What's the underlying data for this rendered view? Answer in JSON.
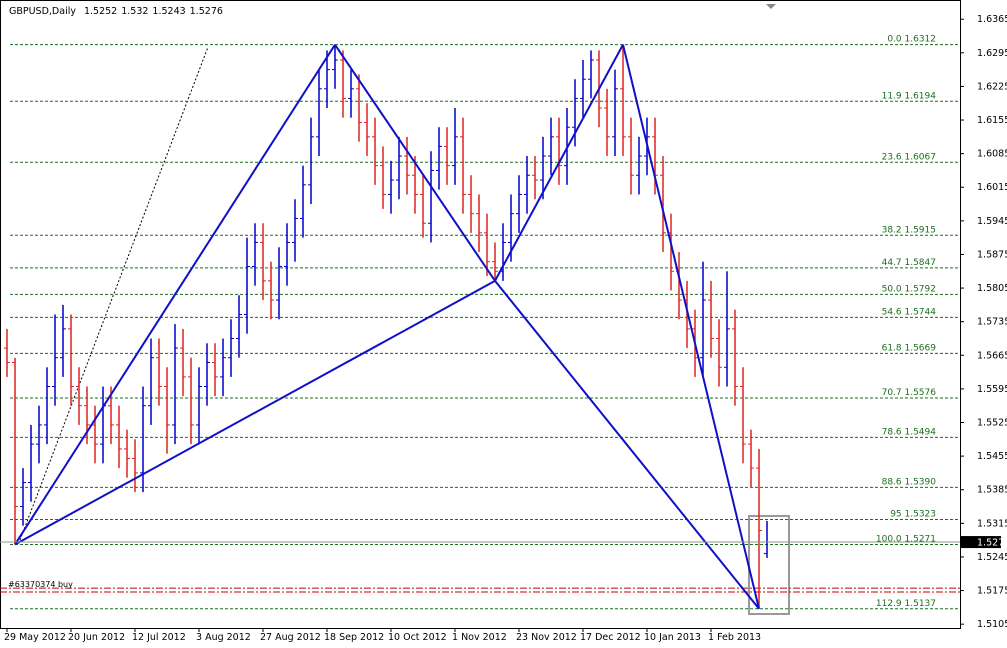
{
  "chart_data": {
    "type": "ohlc",
    "title": "GBPUSD,Daily",
    "header_values": [
      1.5252,
      1.532,
      1.5243,
      1.5276
    ],
    "ylim": [
      1.5097,
      1.6405
    ],
    "yticks": [
      1.6365,
      1.6295,
      1.6225,
      1.6155,
      1.6085,
      1.6015,
      1.5945,
      1.5875,
      1.5805,
      1.5735,
      1.5665,
      1.5595,
      1.5525,
      1.5455,
      1.5385,
      1.5315,
      1.5245,
      1.5175,
      1.5105
    ],
    "date_labels": [
      "29 May 2012",
      "20 Jun 2012",
      "12 Jul 2012",
      "3 Aug 2012",
      "27 Aug 2012",
      "18 Sep 2012",
      "10 Oct 2012",
      "1 Nov 2012",
      "23 Nov 2012",
      "17 Dec 2012",
      "10 Jan 2013",
      "1 Feb 2013"
    ],
    "up_color": "#0000cc",
    "down_color": "#dd2222",
    "pattern_color": "#1010c8",
    "bars": [
      [
        1.568,
        1.572,
        1.562,
        1.565
      ],
      [
        1.565,
        1.566,
        1.5271,
        1.535
      ],
      [
        1.535,
        1.543,
        1.531,
        1.54
      ],
      [
        1.54,
        1.552,
        1.536,
        1.548
      ],
      [
        1.548,
        1.556,
        1.544,
        1.552
      ],
      [
        1.552,
        1.564,
        1.548,
        1.56
      ],
      [
        1.56,
        1.575,
        1.556,
        1.566
      ],
      [
        1.566,
        1.577,
        1.562,
        1.572
      ],
      [
        1.572,
        1.575,
        1.556,
        1.56
      ],
      [
        1.56,
        1.564,
        1.552,
        1.556
      ],
      [
        1.556,
        1.56,
        1.548,
        1.552
      ],
      [
        1.552,
        1.556,
        1.544,
        1.548
      ],
      [
        1.548,
        1.56,
        1.544,
        1.556
      ],
      [
        1.556,
        1.56,
        1.548,
        1.552
      ],
      [
        1.552,
        1.556,
        1.543,
        1.547
      ],
      [
        1.547,
        1.551,
        1.541,
        1.545
      ],
      [
        1.545,
        1.549,
        1.538,
        1.542
      ],
      [
        1.542,
        1.56,
        1.538,
        1.556
      ],
      [
        1.556,
        1.57,
        1.552,
        1.566
      ],
      [
        1.566,
        1.57,
        1.556,
        1.56
      ],
      [
        1.56,
        1.564,
        1.546,
        1.552
      ],
      [
        1.552,
        1.573,
        1.548,
        1.568
      ],
      [
        1.568,
        1.572,
        1.558,
        1.562
      ],
      [
        1.562,
        1.566,
        1.548,
        1.552
      ],
      [
        1.552,
        1.564,
        1.548,
        1.56
      ],
      [
        1.56,
        1.569,
        1.556,
        1.565
      ],
      [
        1.565,
        1.569,
        1.558,
        1.562
      ],
      [
        1.562,
        1.57,
        1.558,
        1.566
      ],
      [
        1.566,
        1.574,
        1.562,
        1.57
      ],
      [
        1.57,
        1.579,
        1.566,
        1.575
      ],
      [
        1.575,
        1.591,
        1.571,
        1.585
      ],
      [
        1.585,
        1.594,
        1.581,
        1.59
      ],
      [
        1.59,
        1.594,
        1.578,
        1.582
      ],
      [
        1.582,
        1.586,
        1.574,
        1.578
      ],
      [
        1.578,
        1.589,
        1.574,
        1.585
      ],
      [
        1.585,
        1.594,
        1.581,
        1.59
      ],
      [
        1.59,
        1.599,
        1.586,
        1.595
      ],
      [
        1.595,
        1.606,
        1.591,
        1.602
      ],
      [
        1.602,
        1.616,
        1.598,
        1.612
      ],
      [
        1.612,
        1.626,
        1.608,
        1.622
      ],
      [
        1.622,
        1.63,
        1.618,
        1.626
      ],
      [
        1.626,
        1.6312,
        1.622,
        1.628
      ],
      [
        1.628,
        1.63,
        1.616,
        1.62
      ],
      [
        1.62,
        1.626,
        1.616,
        1.622
      ],
      [
        1.622,
        1.625,
        1.611,
        1.615
      ],
      [
        1.615,
        1.619,
        1.608,
        1.612
      ],
      [
        1.612,
        1.616,
        1.602,
        1.606
      ],
      [
        1.606,
        1.61,
        1.597,
        1.6
      ],
      [
        1.6,
        1.607,
        1.596,
        1.603
      ],
      [
        1.603,
        1.612,
        1.599,
        1.608
      ],
      [
        1.608,
        1.612,
        1.6,
        1.604
      ],
      [
        1.604,
        1.608,
        1.596,
        1.6
      ],
      [
        1.6,
        1.604,
        1.591,
        1.594
      ],
      [
        1.594,
        1.609,
        1.59,
        1.605
      ],
      [
        1.605,
        1.614,
        1.601,
        1.61
      ],
      [
        1.61,
        1.614,
        1.602,
        1.606
      ],
      [
        1.606,
        1.618,
        1.602,
        1.612
      ],
      [
        1.612,
        1.616,
        1.596,
        1.6
      ],
      [
        1.6,
        1.604,
        1.592,
        1.596
      ],
      [
        1.596,
        1.6,
        1.588,
        1.592
      ],
      [
        1.592,
        1.596,
        1.583,
        1.586
      ],
      [
        1.586,
        1.59,
        1.582,
        1.584
      ],
      [
        1.584,
        1.594,
        1.582,
        1.59
      ],
      [
        1.59,
        1.6,
        1.586,
        1.596
      ],
      [
        1.596,
        1.604,
        1.592,
        1.6
      ],
      [
        1.6,
        1.608,
        1.596,
        1.604
      ],
      [
        1.604,
        1.608,
        1.599,
        1.603
      ],
      [
        1.603,
        1.612,
        1.599,
        1.608
      ],
      [
        1.608,
        1.616,
        1.604,
        1.612
      ],
      [
        1.612,
        1.616,
        1.602,
        1.606
      ],
      [
        1.606,
        1.618,
        1.602,
        1.614
      ],
      [
        1.614,
        1.624,
        1.61,
        1.62
      ],
      [
        1.62,
        1.628,
        1.616,
        1.624
      ],
      [
        1.624,
        1.63,
        1.62,
        1.628
      ],
      [
        1.628,
        1.63,
        1.614,
        1.618
      ],
      [
        1.618,
        1.622,
        1.608,
        1.612
      ],
      [
        1.612,
        1.626,
        1.608,
        1.622
      ],
      [
        1.622,
        1.6312,
        1.608,
        1.612
      ],
      [
        1.612,
        1.616,
        1.6,
        1.604
      ],
      [
        1.604,
        1.612,
        1.6,
        1.608
      ],
      [
        1.608,
        1.616,
        1.604,
        1.612
      ],
      [
        1.612,
        1.616,
        1.6,
        1.604
      ],
      [
        1.604,
        1.608,
        1.588,
        1.592
      ],
      [
        1.592,
        1.596,
        1.58,
        1.584
      ],
      [
        1.584,
        1.588,
        1.574,
        1.578
      ],
      [
        1.578,
        1.582,
        1.568,
        1.572
      ],
      [
        1.572,
        1.576,
        1.562,
        1.566
      ],
      [
        1.566,
        1.586,
        1.562,
        1.578
      ],
      [
        1.578,
        1.582,
        1.566,
        1.57
      ],
      [
        1.57,
        1.574,
        1.56,
        1.564
      ],
      [
        1.564,
        1.584,
        1.56,
        1.572
      ],
      [
        1.572,
        1.576,
        1.556,
        1.56
      ],
      [
        1.56,
        1.564,
        1.544,
        1.548
      ],
      [
        1.548,
        1.551,
        1.539,
        1.543
      ],
      [
        1.543,
        1.547,
        1.5137,
        1.53
      ],
      [
        1.5252,
        1.532,
        1.5243,
        1.5276
      ]
    ],
    "fib_levels": [
      {
        "label": "0.0 1.6312",
        "price": 1.6312
      },
      {
        "label": "11.9 1.6194",
        "price": 1.6194
      },
      {
        "label": "23.6 1.6067",
        "price": 1.6067
      },
      {
        "label": "38.2 1.5915",
        "price": 1.5915
      },
      {
        "label": "44.7 1.5847",
        "price": 1.5847
      },
      {
        "label": "50.0 1.5792",
        "price": 1.5792
      },
      {
        "label": "54.6 1.5744",
        "price": 1.5744
      },
      {
        "label": "61.8 1.5669",
        "price": 1.5669
      },
      {
        "label": "70.7 1.5576",
        "price": 1.5576
      },
      {
        "label": "78.6 1.5494",
        "price": 1.5494
      },
      {
        "label": "88.6 1.5390",
        "price": 1.539
      },
      {
        "label": "95 1.5323",
        "price": 1.5323
      },
      {
        "label": "100.0 1.5271",
        "price": 1.5271
      },
      {
        "label": "112.9 1.5137",
        "price": 1.5137
      }
    ],
    "order_lines": [
      {
        "label": "#63370374 buy",
        "price": 1.518
      },
      {
        "price": 1.5172
      }
    ]
  }
}
